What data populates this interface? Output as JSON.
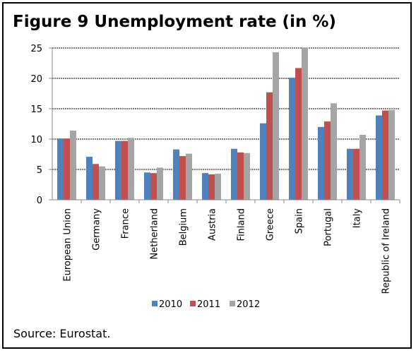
{
  "figure": {
    "title": "Figure 9 Unemployment rate (in %)",
    "source": "Source: Eurostat."
  },
  "chart_data": {
    "type": "bar",
    "title": "Figure 9 Unemployment rate (in %)",
    "xlabel": "",
    "ylabel": "",
    "ylim": [
      0,
      25
    ],
    "yticks": [
      0,
      5,
      10,
      15,
      20,
      25
    ],
    "grid": true,
    "legend_position": "bottom",
    "categories": [
      "European Union",
      "Germany",
      "France",
      "Netherland",
      "Belgium",
      "Austria",
      "Finland",
      "Greece",
      "Spain",
      "Portugal",
      "Italy",
      "Republic of Ireland"
    ],
    "series": [
      {
        "name": "2010",
        "color": "#4f81bd",
        "values": [
          10.1,
          7.1,
          9.7,
          4.5,
          8.3,
          4.4,
          8.4,
          12.6,
          20.1,
          12.0,
          8.4,
          13.9
        ]
      },
      {
        "name": "2011",
        "color": "#c0504d",
        "values": [
          10.1,
          5.9,
          9.7,
          4.4,
          7.2,
          4.2,
          7.8,
          17.7,
          21.7,
          12.9,
          8.4,
          14.7
        ]
      },
      {
        "name": "2012",
        "color": "#a5a5a5",
        "values": [
          11.4,
          5.5,
          10.2,
          5.3,
          7.6,
          4.3,
          7.7,
          24.3,
          25.1,
          15.9,
          10.7,
          14.8
        ]
      }
    ]
  }
}
